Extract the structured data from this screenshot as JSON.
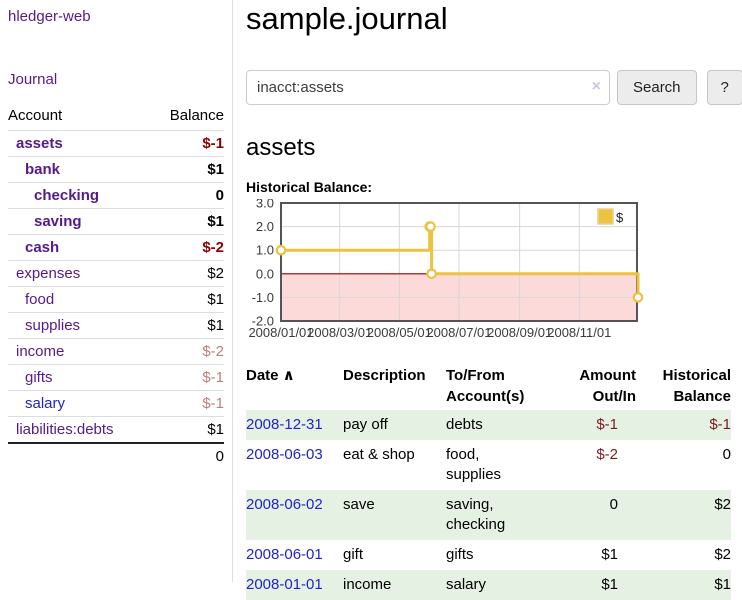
{
  "colors": {
    "link_purple": "#551a8b",
    "link_blue": "#2222cc",
    "neg_strong": "#8b0000",
    "neg_dim": "#bc7f7f",
    "neg_table": "#7d1a1f",
    "row_green": "#e5f1e2",
    "series_gold": "#edc240",
    "grid_gray": "#d7d7d7",
    "chart_border": "#545454",
    "zero_line": "#8b0000",
    "negative_region": "#fcdada"
  },
  "sidebar": {
    "app_title": "hledger-web",
    "nav": {
      "journal_label": "Journal"
    },
    "accounts": {
      "col_account": "Account",
      "col_balance": "Balance",
      "rows": [
        {
          "name": "assets",
          "depth": 1,
          "bold": true,
          "balance": "$-1",
          "neg": "strong",
          "link": "purple"
        },
        {
          "name": "bank",
          "depth": 2,
          "bold": true,
          "balance": "$1",
          "neg": "none",
          "link": "purple"
        },
        {
          "name": "checking",
          "depth": 3,
          "bold": true,
          "balance": "0",
          "neg": "none",
          "link": "purple"
        },
        {
          "name": "saving",
          "depth": 3,
          "bold": true,
          "balance": "$1",
          "neg": "none",
          "link": "purple"
        },
        {
          "name": "cash",
          "depth": 2,
          "bold": true,
          "balance": "$-2",
          "neg": "strong",
          "link": "purple"
        },
        {
          "name": "expenses",
          "depth": 1,
          "bold": false,
          "balance": "$2",
          "neg": "none",
          "link": "purple"
        },
        {
          "name": "food",
          "depth": 2,
          "bold": false,
          "balance": "$1",
          "neg": "none",
          "link": "purple"
        },
        {
          "name": "supplies",
          "depth": 2,
          "bold": false,
          "balance": "$1",
          "neg": "none",
          "link": "purple"
        },
        {
          "name": "income",
          "depth": 1,
          "bold": false,
          "balance": "$-2",
          "neg": "dim",
          "link": "purple"
        },
        {
          "name": "gifts",
          "depth": 2,
          "bold": false,
          "balance": "$-1",
          "neg": "dim",
          "link": "purple"
        },
        {
          "name": "salary",
          "depth": 2,
          "bold": false,
          "balance": "$-1",
          "neg": "dim",
          "link": "blue"
        },
        {
          "name": "liabilities:debts",
          "depth": 1,
          "bold": false,
          "balance": "$1",
          "neg": "none",
          "link": "purple"
        }
      ],
      "total": "0"
    }
  },
  "main": {
    "title": "sample.journal",
    "search": {
      "value": "inacct:assets",
      "clear_icon": "×",
      "button_label": "Search",
      "help_label": "?"
    },
    "account_heading": "assets",
    "chart_title": "Historical Balance:"
  },
  "chart_data": {
    "type": "line",
    "step": true,
    "title": "Historical Balance of assets",
    "series": [
      {
        "name": "$",
        "color": "#edc240",
        "points": [
          {
            "date": "2008-01-01",
            "value": 1
          },
          {
            "date": "2008-06-01",
            "value": 2
          },
          {
            "date": "2008-06-02",
            "value": 2
          },
          {
            "date": "2008-06-03",
            "value": 0
          },
          {
            "date": "2008-12-31",
            "value": -1
          }
        ]
      }
    ],
    "x_tick_labels": [
      "2008/01/01",
      "2008/03/01",
      "2008/05/01",
      "2008/07/01",
      "2008/09/01",
      "2008/11/01"
    ],
    "x_grid_days": [
      60,
      121,
      182,
      244,
      305
    ],
    "x_range_days": [
      0,
      364
    ],
    "y_ticks": [
      "3.0",
      "2.0",
      "1.0",
      "0.0",
      "-1.0",
      "-2.0"
    ],
    "ylim": [
      -2,
      3
    ],
    "grid": true,
    "legend_position": "top-right",
    "legend_label": "$"
  },
  "register": {
    "headers": [
      {
        "text": "Date",
        "align": "left",
        "sortable": true
      },
      {
        "text": "Description",
        "align": "left"
      },
      {
        "text": "To/From\nAccount(s)",
        "align": "left"
      },
      {
        "text": "Amount\nOut/In",
        "align": "right"
      },
      {
        "text": "Historical\nBalance",
        "align": "right"
      }
    ],
    "sort_icon": "∧",
    "rows": [
      {
        "date": "2008-12-31",
        "description": "pay off",
        "accounts": "debts",
        "amount": "$-1",
        "amount_neg": true,
        "balance": "$-1",
        "balance_neg": true
      },
      {
        "date": "2008-06-03",
        "description": "eat & shop",
        "accounts": "food, supplies",
        "amount": "$-2",
        "amount_neg": true,
        "balance": "0",
        "balance_neg": false
      },
      {
        "date": "2008-06-02",
        "description": "save",
        "accounts": "saving, checking",
        "amount": "0",
        "amount_neg": false,
        "balance": "$2",
        "balance_neg": false
      },
      {
        "date": "2008-06-01",
        "description": "gift",
        "accounts": "gifts",
        "amount": "$1",
        "amount_neg": false,
        "balance": "$2",
        "balance_neg": false
      },
      {
        "date": "2008-01-01",
        "description": "income",
        "accounts": "salary",
        "amount": "$1",
        "amount_neg": false,
        "balance": "$1",
        "balance_neg": false
      }
    ]
  }
}
